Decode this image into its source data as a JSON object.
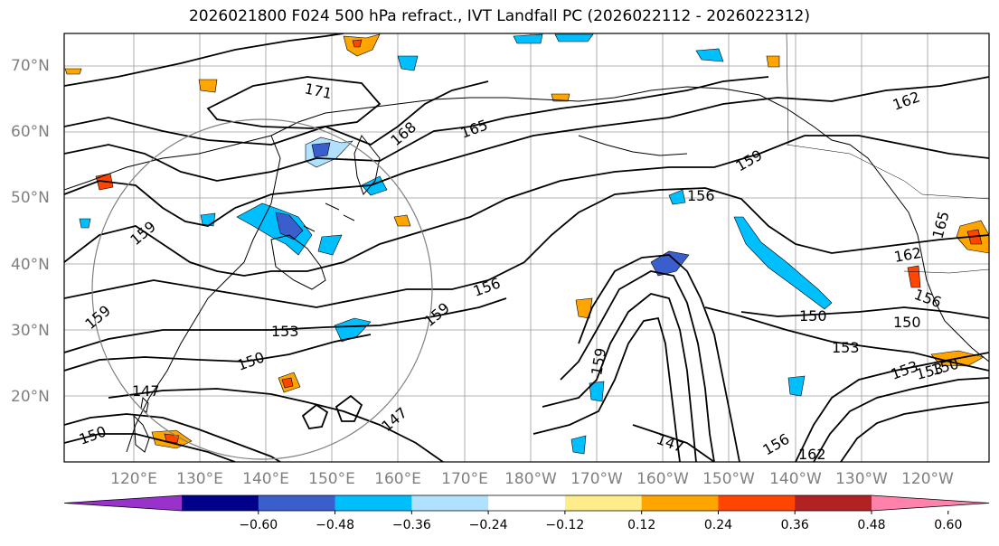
{
  "title": "2026021800 F024 500 hPa refract., IVT Landfall PC (2026022112 - 2026022312)",
  "lat_labels": [
    "70°N",
    "60°N",
    "50°N",
    "40°N",
    "30°N",
    "20°N"
  ],
  "lon_labels": [
    "120°E",
    "130°E",
    "140°E",
    "150°E",
    "160°E",
    "170°E",
    "180°W",
    "170°W",
    "160°W",
    "150°W",
    "140°W",
    "130°W",
    "120°W"
  ],
  "contour_labels": [
    "171",
    "168",
    "165",
    "162",
    "159",
    "159",
    "159",
    "159",
    "159",
    "156",
    "156",
    "156",
    "153",
    "153",
    "153",
    "150",
    "150",
    "150",
    "150",
    "147",
    "147",
    "147",
    "162",
    "162",
    "165",
    "156",
    "153",
    "150"
  ],
  "colorbar": {
    "colors": [
      "#9932cc",
      "#00008b",
      "#3a5fcd",
      "#00bfff",
      "#b0e2ff",
      "#ffffff",
      "#ffec8b",
      "#ffa500",
      "#ff4500",
      "#b22222",
      "#ff82ab"
    ],
    "tick_labels": [
      "−0.60",
      "−0.48",
      "−0.36",
      "−0.24",
      "−0.12",
      "0.12",
      "0.24",
      "0.36",
      "0.48",
      "0.60"
    ]
  },
  "colors": {
    "contour": "#000000",
    "grid": "#808080",
    "coast": "#000000"
  }
}
